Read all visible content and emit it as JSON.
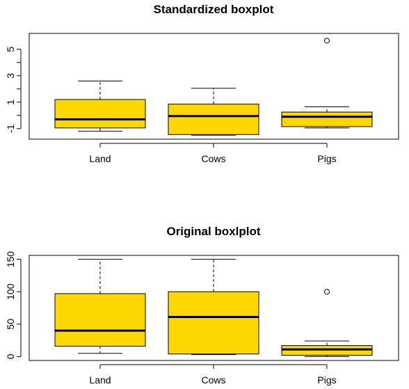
{
  "chart_data": [
    {
      "type": "boxplot",
      "title": "Standardized boxplot",
      "categories": [
        "Land",
        "Cows",
        "Pigs"
      ],
      "ylim": [
        -1.8,
        6.2
      ],
      "yticks": [
        -1,
        1,
        3,
        5
      ],
      "ytick_labels": [
        "-1",
        "1",
        "3",
        "5"
      ],
      "fill_color": "#FFD700",
      "boxes": [
        {
          "name": "Land",
          "whisker_low": -1.2,
          "q1": -0.95,
          "median": -0.3,
          "q3": 1.2,
          "whisker_high": 2.6,
          "outliers": []
        },
        {
          "name": "Cows",
          "whisker_low": -1.5,
          "q1": -1.45,
          "median": -0.05,
          "q3": 0.85,
          "whisker_high": 2.05,
          "outliers": []
        },
        {
          "name": "Pigs",
          "whisker_low": -0.95,
          "q1": -0.85,
          "median": -0.1,
          "q3": 0.25,
          "whisker_high": 0.65,
          "outliers": [
            5.65
          ]
        }
      ]
    },
    {
      "type": "boxplot",
      "title": "Original boxlplot",
      "categories": [
        "Land",
        "Cows",
        "Pigs"
      ],
      "ylim": [
        -6,
        156
      ],
      "yticks": [
        0,
        50,
        100,
        150
      ],
      "ytick_labels": [
        "0",
        "50",
        "100",
        "150"
      ],
      "fill_color": "#FFD700",
      "boxes": [
        {
          "name": "Land",
          "whisker_low": 5,
          "q1": 16,
          "median": 40,
          "q3": 97,
          "whisker_high": 150,
          "outliers": []
        },
        {
          "name": "Cows",
          "whisker_low": 3,
          "q1": 4,
          "median": 61,
          "q3": 100,
          "whisker_high": 150,
          "outliers": []
        },
        {
          "name": "Pigs",
          "whisker_low": 0,
          "q1": 2,
          "median": 11,
          "q3": 17,
          "whisker_high": 24,
          "outliers": [
            100
          ]
        }
      ]
    }
  ]
}
